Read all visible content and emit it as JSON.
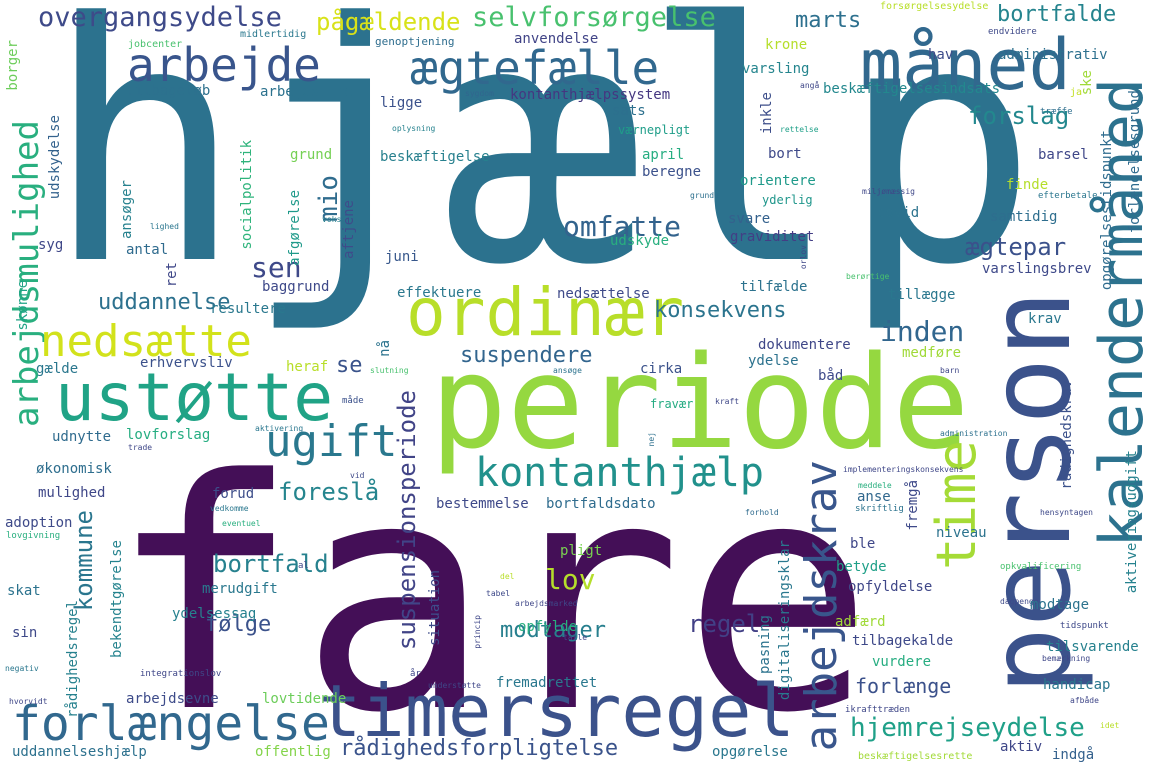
{
  "words": {
    "hjaelp": "hjælp",
    "fare": "fare",
    "periode": "periode",
    "person": "person",
    "maaned": "måned",
    "timersregel": "timersregel",
    "ordinaer": "ordinær",
    "ustotte": "ustøtte",
    "kalendermaaned": "kalendermåned",
    "forlaengelse": "forlængelse",
    "arbejde": "arbejde",
    "aegtefaelle": "ægtefælle",
    "kontanthjaelp": "kontanthjælp",
    "time": "time",
    "arbejdsmulighed": "arbejdsmulighed",
    "nedsaette": "nedsætte",
    "ugift": "ugift",
    "arbejdskrav": "arbejdskrav",
    "overgangsydelse": "overgangsydelse",
    "selvforsorgelse": "selvforsørgelse",
    "paagaeldende": "pågældende",
    "bortfalde": "bortfalde",
    "marts": "marts",
    "forslag": "forslag",
    "omfatte": "omfatte",
    "sen": "sen",
    "mio": "mio",
    "inden": "inden",
    "aegtepar": "ægtepar",
    "uddannelse": "uddannelse",
    "konsekvens": "konsekvens",
    "suspendere": "suspendere",
    "foreslaa": "foreslå",
    "bortfald": "bortfald",
    "lov": "lov",
    "suspensionsperiode": "suspensionsperiode",
    "regel": "regel",
    "modtager": "modtager",
    "folge": "følge",
    "kommune": "kommune",
    "hjemrejseydelse": "hjemrejseydelse",
    "raadighedsforpligtelse": "rådighedsforpligtelse",
    "uddannelseshjaelp": "uddannelseshjælp",
    "offentlig": "offentlig",
    "opgorelse": "opgørelse",
    "aktiv": "aktiv",
    "indgaa": "indgå",
    "beskaeftigelsesrette": "beskæftigelsesrette",
    "forlaenge": "forlænge",
    "se": "se",
    "krone": "krone",
    "anvendelse": "anvendelse",
    "genoptjening": "genoptjening",
    "midlertidig": "midlertidig",
    "jobcenter": "jobcenter",
    "borger": "borger",
    "udskydelse": "udskydelse",
    "tilbageloeb": "tilbageløb",
    "arbejdstime": "arbejdstime",
    "ligge": "ligge",
    "kontanthjaelpssystem": "kontanthjælpssystem",
    "sats": "sats",
    "vaernepligt": "værnepligt",
    "varsling": "varsling",
    "hav": "hav",
    "administrativ": "administrativ",
    "beskaeftigelsesindsats": "beskæftigelsesindsats",
    "forsorgelsesydelse": "forsørgelsesydelse",
    "endvidere": "endvidere",
    "forlaengelsesgrund": "forlængelsesgrund",
    "ske": "ske",
    "ja": "ja",
    "traeffe": "træffe",
    "angaa": "angå",
    "sygdom": "sygdom",
    "oplysning": "oplysning",
    "beskaeftigelse": "beskæftigelse",
    "socialpolitik": "socialpolitik",
    "grund": "grund",
    "april": "april",
    "beregne": "beregne",
    "inkle": "inkle",
    "bort": "bort",
    "barsel": "barsel",
    "orientere": "orientere",
    "yderlig": "yderlig",
    "svare": "svare",
    "graviditet": "graviditet",
    "covid": "covid",
    "samtidig": "samtidig",
    "finde": "finde",
    "eu": "eu",
    "miljoemaessig": "miljømæssig",
    "efterbetale": "efterbetale",
    "grunde": "grunde",
    "rettelse": "rettelse",
    "opgoerelsestidspunkt": "opgørelsestidspunkt",
    "udskyde": "udskyde",
    "aftjene": "aftjene",
    "afgoerelse": "afgørelse",
    "voks": "voks",
    "ansoeger": "ansøger",
    "lighed": "lighed",
    "antal": "antal",
    "syg": "syg",
    "juni": "juni",
    "ret": "ret",
    "skoenne": "skønne",
    "baggrund": "baggrund",
    "resultere": "resultere",
    "effektuere": "effektuere",
    "nedsaettelse": "nedsættelse",
    "tilfaelde": "tilfælde",
    "tillaegge": "tillægge",
    "varslingsbrev": "varslingsbrev",
    "krav": "krav",
    "orlov": "orlov",
    "beroertige": "berørtige",
    "erhvervsliv": "erhvervsliv",
    "naa": "nå",
    "gaelde": "gælde",
    "heraf": "heraf",
    "slutning": "slutning",
    "ansoege": "ansøge",
    "cirka": "cirka",
    "dokumentere": "dokumentere",
    "medfoere": "medføre",
    "ydelse": "ydelse",
    "baad": "båd",
    "barn": "barn",
    "maade": "måde",
    "aktivering": "aktivering",
    "fravaer": "fravær",
    "kraft": "kraft",
    "administration": "administration",
    "udnytte": "udnytte",
    "lovforslag": "lovforslag",
    "traade": "trade",
    "nej": "nej",
    "oekonomisk": "økonomisk",
    "vid": "vid",
    "implementeringskonsekvens": "implementeringskonsekvens",
    "raadighedskrav": "rådighedskrav",
    "aktiveringsudgift": "aktiveringsudgift",
    "mulighed": "mulighed",
    "forud": "forud",
    "anse": "anse",
    "fremgaa": "fremgå",
    "meddele": "meddele",
    "bestemmelse": "bestemmelse",
    "bortfaldsdato": "bortfaldsdato",
    "skriftlig": "skriftlig",
    "vedkomme": "vedkomme",
    "forhold": "forhold",
    "hensyntagen": "hensyntagen",
    "adoption": "adoption",
    "lovgivning": "lovgivning",
    "eventuel": "eventuel",
    "ble": "ble",
    "niveau": "niveau",
    "bekendtgoerelse": "bekendtgørelse",
    "raadighedsregel": "rådighedsregel",
    "pligt": "pligt",
    "betyde": "betyde",
    "opkvalificering": "opkvalificering",
    "skat": "skat",
    "al": "al",
    "del": "del",
    "tabel": "tabel",
    "princip": "princip",
    "situation": "situation",
    "pasning": "pasning",
    "digitaliseringsklar": "digitaliseringsklar",
    "opfyldelse": "opfyldelse",
    "dagpenge": "dagpenge",
    "merudgift": "merudgift",
    "arbejdsmarked": "arbejdsmarked",
    "ydelsessag": "ydelsessag",
    "opfylde": "opfylde",
    "adfaerd": "adfærd",
    "modtage": "modtage",
    "sin": "sin",
    "talle": "talle",
    "tidspunkt": "tidspunkt",
    "tilbagekalde": "tilbagekalde",
    "tilsvarende": "tilsvarende",
    "bemaerkning": "bemærkning",
    "negativ": "negativ",
    "integrationslov": "integrationslov",
    "aar": "år",
    "understoette": "understøtte",
    "fremadrettet": "fremadrettet",
    "vurdere": "vurdere",
    "handicap": "handicap",
    "arbejdsevne": "arbejdsevne",
    "lovtidende": "lovtidende",
    "hvorvidt": "hvorvidt",
    "ikrafttraeden": "ikrafttræden",
    "afbaade": "afbåde",
    "idet": "idet"
  }
}
